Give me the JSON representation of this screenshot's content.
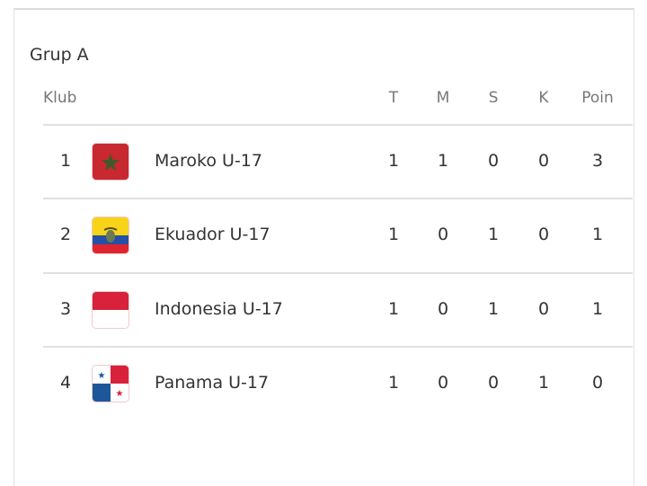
{
  "group_title": "Grup A",
  "headers": {
    "club": "Klub",
    "played": "T",
    "won": "M",
    "draw": "S",
    "lost": "K",
    "points": "Poin"
  },
  "rows": [
    {
      "rank": "1",
      "flag": "morocco-flag",
      "name": "Maroko U-17",
      "played": "1",
      "won": "1",
      "draw": "0",
      "lost": "0",
      "points": "3"
    },
    {
      "rank": "2",
      "flag": "ecuador-flag",
      "name": "Ekuador U-17",
      "played": "1",
      "won": "0",
      "draw": "1",
      "lost": "0",
      "points": "1"
    },
    {
      "rank": "3",
      "flag": "indonesia-flag",
      "name": "Indonesia U-17",
      "played": "1",
      "won": "0",
      "draw": "1",
      "lost": "0",
      "points": "1"
    },
    {
      "rank": "4",
      "flag": "panama-flag",
      "name": "Panama U-17",
      "played": "1",
      "won": "0",
      "draw": "0",
      "lost": "1",
      "points": "0"
    }
  ]
}
